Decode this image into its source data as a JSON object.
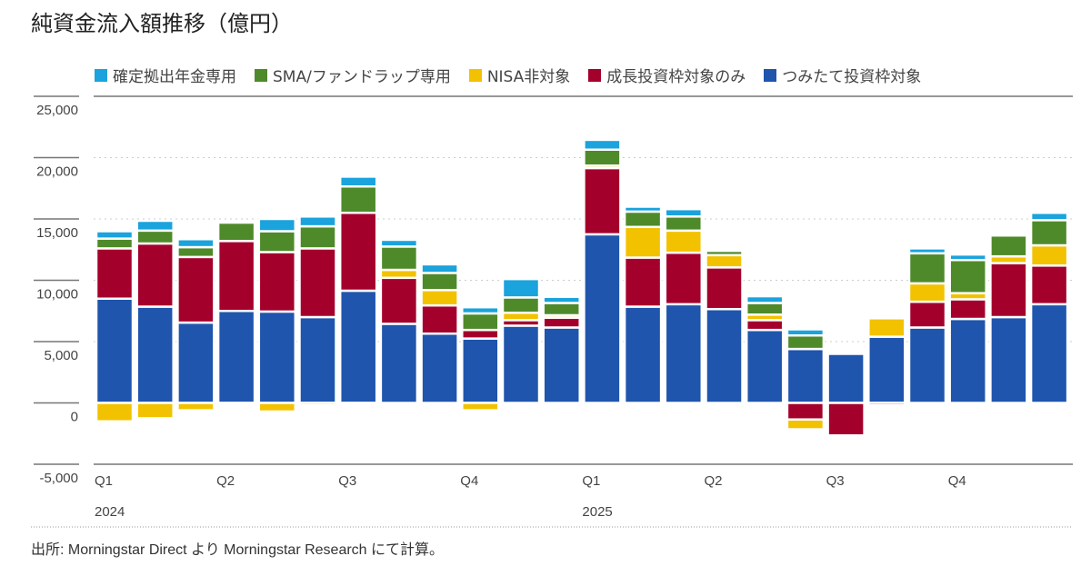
{
  "chart_data": {
    "type": "bar",
    "stacked": true,
    "title": "純資金流入額推移（億円）",
    "source": "出所: Morningstar Direct より Morningstar Research にて計算。",
    "ylim": [
      -5000,
      25000
    ],
    "yticks": [
      -5000,
      0,
      5000,
      10000,
      15000,
      20000,
      25000
    ],
    "ytick_labels": [
      "-5,000",
      "0",
      "5,000",
      "10,000",
      "15,000",
      "20,000",
      "25,000"
    ],
    "grid": true,
    "legend_position": "top",
    "categories": [
      "2024-01",
      "2024-02",
      "2024-03",
      "2024-04",
      "2024-05",
      "2024-06",
      "2024-07",
      "2024-08",
      "2024-09",
      "2024-10",
      "2024-11",
      "2024-12",
      "2025-01",
      "2025-02",
      "2025-03",
      "2025-04",
      "2025-05",
      "2025-06",
      "2025-07",
      "2025-08",
      "2025-09",
      "2025-10",
      "2025-11",
      "2025-12"
    ],
    "x_labels": [
      {
        "index": 0,
        "quarter": "Q1",
        "year": "2024"
      },
      {
        "index": 3,
        "quarter": "Q2",
        "year": ""
      },
      {
        "index": 6,
        "quarter": "Q3",
        "year": ""
      },
      {
        "index": 9,
        "quarter": "Q4",
        "year": ""
      },
      {
        "index": 12,
        "quarter": "Q1",
        "year": "2025"
      },
      {
        "index": 15,
        "quarter": "Q2",
        "year": ""
      },
      {
        "index": 18,
        "quarter": "Q3",
        "year": ""
      },
      {
        "index": 21,
        "quarter": "Q4",
        "year": ""
      }
    ],
    "series": [
      {
        "name": "つみたて投資枠対象",
        "color": "#1f55ad",
        "values": [
          8500,
          7850,
          6550,
          7500,
          7450,
          7000,
          9150,
          6450,
          5650,
          5250,
          6300,
          6150,
          13750,
          7850,
          8050,
          7650,
          5950,
          4400,
          4000,
          5400,
          6150,
          6850,
          7000,
          8050
        ]
      },
      {
        "name": "成長投資枠対象のみ",
        "color": "#a4002c",
        "values": [
          4100,
          5150,
          5350,
          5700,
          4850,
          5600,
          6350,
          3750,
          2300,
          700,
          450,
          800,
          5400,
          4000,
          4200,
          3400,
          800,
          -1350,
          -2650,
          -200,
          2100,
          1600,
          4400,
          3150
        ]
      },
      {
        "name": "NISA非対象",
        "color": "#f2c200",
        "values": [
          -1500,
          -1250,
          -600,
          -100,
          -700,
          -200,
          -100,
          650,
          1250,
          -600,
          600,
          200,
          200,
          2500,
          1800,
          1000,
          450,
          -800,
          0,
          1500,
          1500,
          500,
          550,
          1650
        ]
      },
      {
        "name": "SMA/ファンドラップ専用",
        "color": "#4e8a2a",
        "values": [
          800,
          1050,
          800,
          1500,
          1700,
          1800,
          2150,
          1900,
          1400,
          1350,
          1250,
          1000,
          1300,
          1250,
          1150,
          350,
          950,
          1100,
          0,
          0,
          2450,
          2700,
          1700,
          2050
        ]
      },
      {
        "name": "確定拠出年金専用",
        "color": "#1aa3dc",
        "values": [
          600,
          800,
          650,
          0,
          1000,
          800,
          800,
          550,
          700,
          500,
          1500,
          500,
          800,
          400,
          600,
          0,
          550,
          500,
          0,
          0,
          400,
          450,
          0,
          600
        ]
      }
    ]
  }
}
